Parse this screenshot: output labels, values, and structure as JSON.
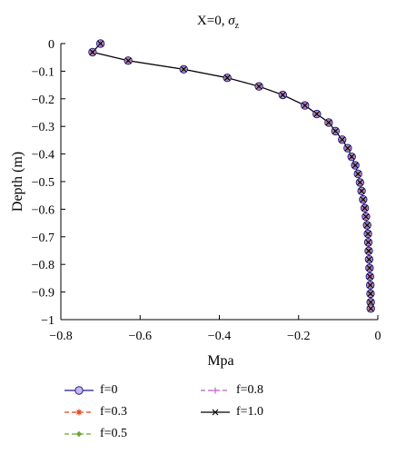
{
  "chart_data": {
    "type": "line",
    "title": "X=0, σz",
    "title_main": "X=0, ",
    "title_sym": "σ",
    "title_sub": "z",
    "xlabel": "Mpa",
    "ylabel": "Depth (m)",
    "xlim": [
      -0.8,
      0
    ],
    "ylim": [
      -1,
      0
    ],
    "xticks": [
      -0.8,
      -0.6,
      -0.4,
      -0.2,
      0
    ],
    "xtick_labels": [
      "−0.8",
      "−0.6",
      "−0.4",
      "−0.2",
      "0"
    ],
    "yticks": [
      0,
      -0.1,
      -0.2,
      -0.3,
      -0.4,
      -0.5,
      -0.6,
      -0.7,
      -0.8,
      -0.9,
      -1
    ],
    "ytick_labels": [
      "0",
      "−0.1",
      "−0.2",
      "−0.3",
      "−0.4",
      "−0.5",
      "−0.6",
      "−0.7",
      "−0.8",
      "−0.9",
      "−1"
    ],
    "grid": false,
    "legend_placement": "bottom",
    "x": [
      -0.7,
      -0.72,
      -0.63,
      -0.49,
      -0.38,
      -0.3,
      -0.24,
      -0.184,
      -0.154,
      -0.124,
      -0.107,
      -0.09,
      -0.076,
      -0.066,
      -0.057,
      -0.05,
      -0.045,
      -0.041,
      -0.037,
      -0.033,
      -0.03,
      -0.027,
      -0.025,
      -0.024,
      -0.023,
      -0.022,
      -0.021,
      -0.02,
      -0.019
    ],
    "y": [
      0.0,
      -0.031,
      -0.062,
      -0.093,
      -0.124,
      -0.155,
      -0.186,
      -0.224,
      -0.255,
      -0.286,
      -0.317,
      -0.348,
      -0.379,
      -0.41,
      -0.441,
      -0.472,
      -0.503,
      -0.534,
      -0.565,
      -0.596,
      -0.627,
      -0.658,
      -0.689,
      -0.72,
      -0.751,
      -0.782,
      -0.813,
      -0.844,
      -0.875
    ],
    "y_tail": [
      -0.906,
      -0.937,
      -0.96
    ],
    "x_tail": [
      -0.0185,
      -0.018,
      -0.0178
    ],
    "series": [
      {
        "name": "f=0",
        "color": "#1f1f8f",
        "marker": "circle",
        "dash": "solid"
      },
      {
        "name": "f=0.3",
        "color": "#e0401a",
        "marker": "star",
        "dash": "dashed"
      },
      {
        "name": "f=0.5",
        "color": "#6aa832",
        "marker": "diamond",
        "dash": "dashed"
      },
      {
        "name": "f=0.8",
        "color": "#c25ac4",
        "marker": "plus",
        "dash": "dashed"
      },
      {
        "name": "f=1.0",
        "color": "#000000",
        "marker": "x",
        "dash": "solid"
      }
    ]
  }
}
